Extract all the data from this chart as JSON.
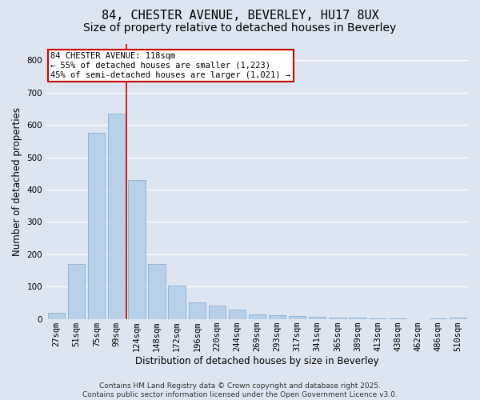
{
  "title1": "84, CHESTER AVENUE, BEVERLEY, HU17 8UX",
  "title2": "Size of property relative to detached houses in Beverley",
  "xlabel": "Distribution of detached houses by size in Beverley",
  "ylabel": "Number of detached properties",
  "categories": [
    "27sqm",
    "51sqm",
    "75sqm",
    "99sqm",
    "124sqm",
    "148sqm",
    "172sqm",
    "196sqm",
    "220sqm",
    "244sqm",
    "269sqm",
    "293sqm",
    "317sqm",
    "341sqm",
    "365sqm",
    "389sqm",
    "413sqm",
    "438sqm",
    "462sqm",
    "486sqm",
    "510sqm"
  ],
  "values": [
    20,
    170,
    575,
    635,
    430,
    170,
    103,
    52,
    40,
    30,
    15,
    12,
    8,
    6,
    5,
    4,
    2,
    1,
    0,
    1,
    5
  ],
  "bar_color": "#b8d0e8",
  "bar_edge_color": "#8ab0d0",
  "background_color": "#dde6f0",
  "grid_color": "#ffffff",
  "property_line_x": 3.5,
  "annotation_text": "84 CHESTER AVENUE: 118sqm\n← 55% of detached houses are smaller (1,223)\n45% of semi-detached houses are larger (1,021) →",
  "annotation_box_color": "#ffffff",
  "annotation_box_edge_color": "#cc0000",
  "property_line_color": "#cc0000",
  "ylim": [
    0,
    850
  ],
  "yticks": [
    0,
    100,
    200,
    300,
    400,
    500,
    600,
    700,
    800
  ],
  "footnote": "Contains HM Land Registry data © Crown copyright and database right 2025.\nContains public sector information licensed under the Open Government Licence v3.0.",
  "title_fontsize": 11,
  "subtitle_fontsize": 10,
  "axis_label_fontsize": 8.5,
  "tick_fontsize": 7.5,
  "annotation_fontsize": 7.5,
  "footnote_fontsize": 6.5
}
